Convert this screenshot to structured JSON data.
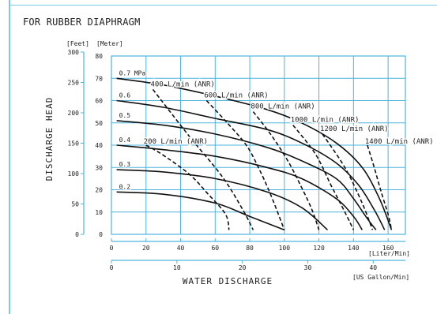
{
  "title": "FOR RUBBER DIAPHRAGM",
  "chart_data": {
    "type": "line",
    "title": "FOR RUBBER DIAPHRAGM",
    "xlabel": "WATER DISCHARGE",
    "ylabel": "DISCHARGE HEAD",
    "x_unit_primary": "[Liter/Min]",
    "x_unit_secondary": "[US Gallon/Min]",
    "y_unit_outer": "[Feet]",
    "y_unit_inner": "[Meter]",
    "xlim": [
      0,
      170
    ],
    "ylim": [
      0,
      80
    ],
    "grid": true,
    "x_ticks": [
      "0",
      "20",
      "40",
      "60",
      "80",
      "100",
      "120",
      "140",
      "160"
    ],
    "x_secondary_ticks": [
      "0",
      "10",
      "20",
      "30",
      "40"
    ],
    "y_ticks_meter": [
      "0",
      "10",
      "20",
      "30",
      "40",
      "50",
      "60",
      "70",
      "80"
    ],
    "y_ticks_feet": [
      "0",
      "50",
      "100",
      "150",
      "200",
      "250",
      "300"
    ],
    "pressure_curves": [
      {
        "name": "0.7 MPa",
        "label": "0.7 MPa",
        "x": [
          3,
          30,
          60,
          90,
          110,
          130,
          145,
          155,
          162
        ],
        "y": [
          70,
          67,
          62,
          56,
          50,
          41,
          30,
          16,
          2
        ]
      },
      {
        "name": "0.6",
        "label": "0.6",
        "x": [
          3,
          30,
          60,
          90,
          110,
          130,
          143,
          152,
          158
        ],
        "y": [
          60,
          57,
          52,
          47,
          41,
          32,
          22,
          11,
          2
        ]
      },
      {
        "name": "0.5",
        "label": "0.5",
        "x": [
          3,
          30,
          60,
          90,
          110,
          130,
          140,
          148,
          153
        ],
        "y": [
          51,
          49,
          45,
          39,
          33,
          25,
          16,
          7,
          2
        ]
      },
      {
        "name": "0.4",
        "label": "0.4",
        "x": [
          3,
          30,
          60,
          90,
          110,
          130,
          140,
          145
        ],
        "y": [
          40,
          38,
          35,
          30,
          25,
          16,
          8,
          2
        ]
      },
      {
        "name": "0.3",
        "label": "0.3",
        "x": [
          3,
          30,
          60,
          90,
          110,
          125
        ],
        "y": [
          29,
          28,
          25,
          19,
          12,
          2
        ]
      },
      {
        "name": "0.2",
        "label": "0.2",
        "x": [
          3,
          30,
          60,
          80,
          100
        ],
        "y": [
          19,
          18,
          14,
          8,
          2
        ]
      }
    ],
    "air_consumption_lines": [
      {
        "name": "200 L/min (ANR)",
        "label": "200 L/min (ANR)",
        "x": [
          20,
          29,
          45,
          56,
          66,
          68
        ],
        "y": [
          40,
          36,
          27,
          18,
          9,
          2
        ]
      },
      {
        "name": "400 L/min (ANR)",
        "label": "400 L/min (ANR)",
        "x": [
          24,
          45,
          64,
          76,
          82
        ],
        "y": [
          65,
          44,
          26,
          11,
          2
        ]
      },
      {
        "name": "600 L/min (ANR)",
        "label": "600 L/min (ANR)",
        "x": [
          55,
          67,
          78,
          85,
          92,
          100
        ],
        "y": [
          60,
          50,
          40,
          30,
          18,
          2
        ]
      },
      {
        "name": "800 L/min (ANR)",
        "label": "800 L/min (ANR)",
        "x": [
          82,
          92,
          102,
          110,
          116,
          120
        ],
        "y": [
          55,
          45,
          33,
          21,
          11,
          2
        ]
      },
      {
        "name": "1000 L/min (ANR)",
        "label": "1000 L/min (ANR)",
        "x": [
          105,
          118,
          127,
          135,
          140
        ],
        "y": [
          49,
          36,
          22,
          10,
          2
        ]
      },
      {
        "name": "1200 L/min (ANR)",
        "label": "1200 L/min (ANR)",
        "x": [
          122,
          135,
          145,
          151
        ],
        "y": [
          45,
          30,
          14,
          2
        ]
      },
      {
        "name": "1400 L/min (ANR)",
        "label": "1400 L/min (ANR)",
        "x": [
          148,
          152,
          156,
          160,
          162
        ],
        "y": [
          40,
          30,
          19,
          9,
          2
        ]
      }
    ]
  }
}
